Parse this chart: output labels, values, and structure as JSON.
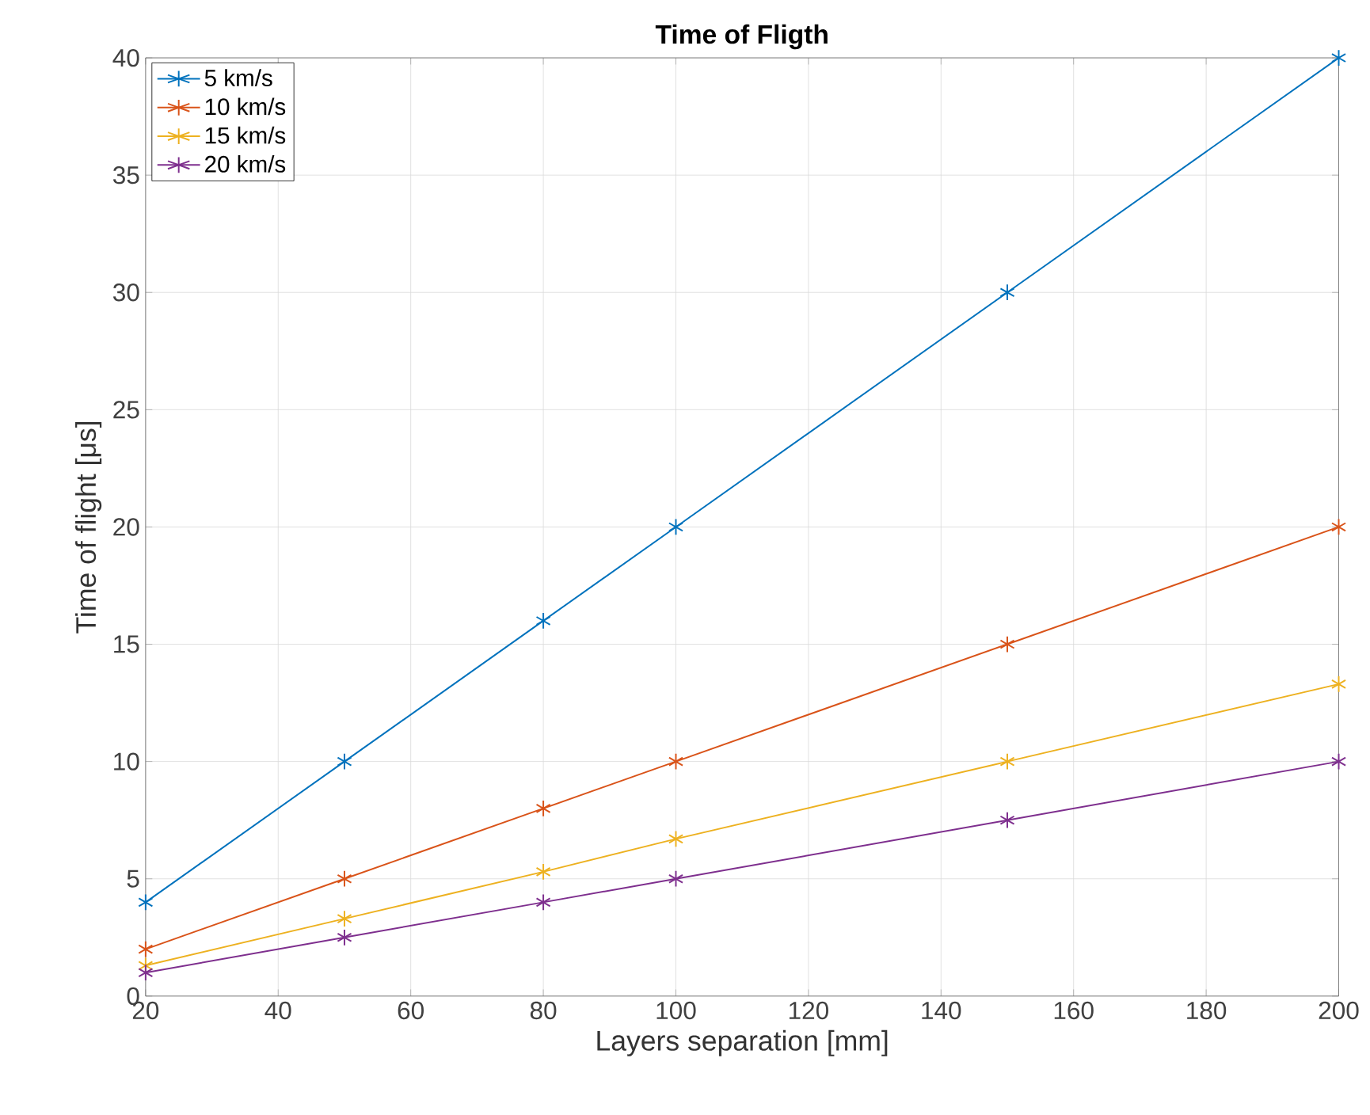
{
  "chart_data": {
    "type": "line",
    "title": "Time of Fligth",
    "xlabel": "Layers separation [mm]",
    "ylabel": "Time of flight [μs]",
    "x": [
      20,
      50,
      80,
      100,
      150,
      200
    ],
    "series": [
      {
        "name": "5 km/s",
        "color": "#0072bd",
        "values": [
          4,
          10,
          16,
          20,
          30,
          40
        ]
      },
      {
        "name": "10 km/s",
        "color": "#d95319",
        "values": [
          2,
          5,
          8,
          10,
          15,
          20
        ]
      },
      {
        "name": "15 km/s",
        "color": "#edb120",
        "values": [
          1.3,
          3.3,
          5.3,
          6.7,
          10,
          13.3
        ]
      },
      {
        "name": "20 km/s",
        "color": "#7e2f8e",
        "values": [
          1,
          2.5,
          4,
          5,
          7.5,
          10
        ]
      }
    ],
    "xlim": [
      20,
      200
    ],
    "ylim": [
      0,
      40
    ],
    "xticks": [
      20,
      40,
      60,
      80,
      100,
      120,
      140,
      160,
      180,
      200
    ],
    "yticks": [
      0,
      5,
      10,
      15,
      20,
      25,
      30,
      35,
      40
    ],
    "grid": true,
    "legend": "top left",
    "marker": "cross",
    "line_style": "solid"
  }
}
